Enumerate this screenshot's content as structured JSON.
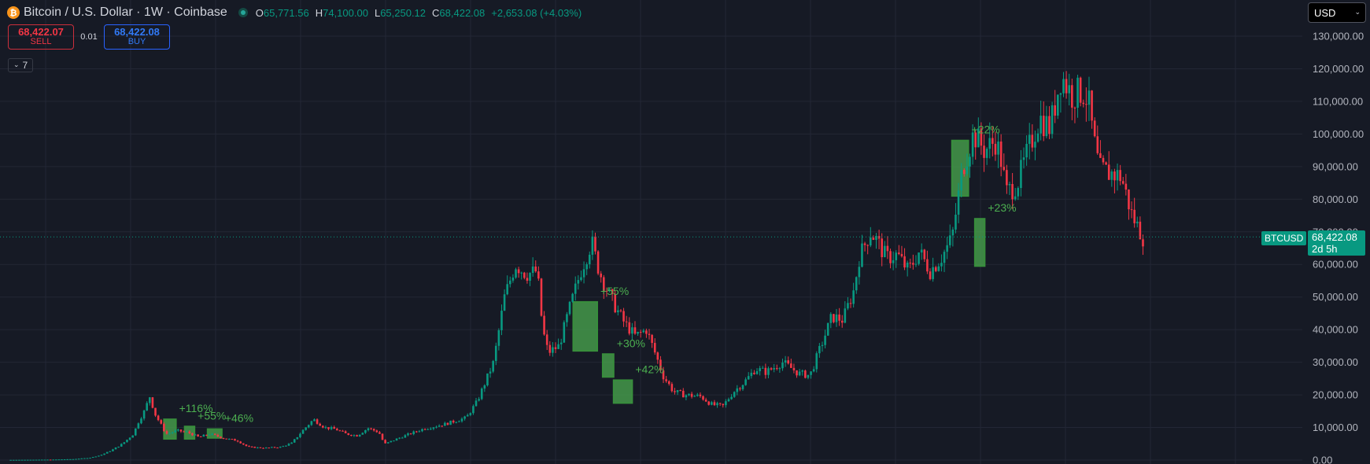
{
  "header": {
    "symbol_title": "Bitcoin / U.S. Dollar · 1W · Coinbase",
    "coin_icon": "bitcoin-icon",
    "ohlc": [
      {
        "key": "O",
        "value": "65,771.56"
      },
      {
        "key": "H",
        "value": "74,100.00"
      },
      {
        "key": "L",
        "value": "65,250.12"
      },
      {
        "key": "C",
        "value": "68,422.08"
      }
    ],
    "change": "+2,653.08 (+4.03%)"
  },
  "trade": {
    "sell_price": "68,422.07",
    "sell_label": "SELL",
    "spread": "0.01",
    "buy_price": "68,422.08",
    "buy_label": "BUY"
  },
  "indicators": {
    "count": "7",
    "icon": "chevron-down-icon"
  },
  "currency": {
    "selected": "USD",
    "icon": "chevron-down-icon"
  },
  "price_tag": {
    "symbol": "BTCUSD",
    "price": "68,422.08",
    "countdown": "2d 5h"
  },
  "colors": {
    "background": "#161a25",
    "grid": "#232735",
    "up": "#089981",
    "down": "#f23645",
    "annotation_fill": "#4caf50",
    "annotation_text": "#4caf50",
    "axis_text": "#b2b5be"
  },
  "chart_data": {
    "type": "candlestick",
    "timeframe": "1W",
    "y_axis": {
      "position": "right",
      "min": 0,
      "max": 130000,
      "tick_values": [
        0,
        10000,
        20000,
        30000,
        40000,
        50000,
        60000,
        70000,
        80000,
        90000,
        100000,
        110000,
        120000,
        130000
      ],
      "tick_labels": [
        "0.00",
        "10,000.00",
        "20,000.00",
        "30,000.00",
        "40,000.00",
        "50,000.00",
        "60,000.00",
        "70,000.00",
        "80,000.00",
        "90,000.00",
        "100,000.00",
        "110,000.00",
        "120,000.00",
        "130,000.00"
      ]
    },
    "grid": true,
    "last_price": 68422.08,
    "price_path": [
      [
        0,
        50
      ],
      [
        0.02,
        100
      ],
      [
        0.04,
        150
      ],
      [
        0.06,
        300
      ],
      [
        0.075,
        700
      ],
      [
        0.085,
        1500
      ],
      [
        0.095,
        3000
      ],
      [
        0.105,
        5000
      ],
      [
        0.115,
        8000
      ],
      [
        0.12,
        12000
      ],
      [
        0.125,
        15000
      ],
      [
        0.13,
        19500
      ],
      [
        0.135,
        14000
      ],
      [
        0.14,
        11000
      ],
      [
        0.145,
        8000
      ],
      [
        0.155,
        9000
      ],
      [
        0.165,
        8500
      ],
      [
        0.175,
        7000
      ],
      [
        0.185,
        8000
      ],
      [
        0.2,
        6500
      ],
      [
        0.21,
        6000
      ],
      [
        0.22,
        4000
      ],
      [
        0.235,
        3700
      ],
      [
        0.25,
        4000
      ],
      [
        0.26,
        5200
      ],
      [
        0.27,
        9000
      ],
      [
        0.28,
        12500
      ],
      [
        0.29,
        10000
      ],
      [
        0.3,
        9500
      ],
      [
        0.31,
        8000
      ],
      [
        0.32,
        7500
      ],
      [
        0.33,
        9800
      ],
      [
        0.34,
        8500
      ],
      [
        0.345,
        4900
      ],
      [
        0.36,
        7000
      ],
      [
        0.38,
        9500
      ],
      [
        0.4,
        11000
      ],
      [
        0.42,
        13000
      ],
      [
        0.43,
        18000
      ],
      [
        0.445,
        30000
      ],
      [
        0.455,
        50000
      ],
      [
        0.465,
        60000
      ],
      [
        0.475,
        57000
      ],
      [
        0.485,
        58000
      ],
      [
        0.49,
        40000
      ],
      [
        0.495,
        33000
      ],
      [
        0.505,
        35000
      ],
      [
        0.515,
        47000
      ],
      [
        0.525,
        58000
      ],
      [
        0.535,
        67000
      ],
      [
        0.54,
        60000
      ],
      [
        0.545,
        55000
      ],
      [
        0.555,
        48000
      ],
      [
        0.565,
        42000
      ],
      [
        0.575,
        38000
      ],
      [
        0.585,
        40000
      ],
      [
        0.595,
        31000
      ],
      [
        0.6,
        26000
      ],
      [
        0.61,
        21000
      ],
      [
        0.62,
        20000
      ],
      [
        0.635,
        19500
      ],
      [
        0.645,
        17000
      ],
      [
        0.655,
        16500
      ],
      [
        0.665,
        21000
      ],
      [
        0.675,
        24000
      ],
      [
        0.685,
        28000
      ],
      [
        0.695,
        27000
      ],
      [
        0.71,
        30000
      ],
      [
        0.725,
        26500
      ],
      [
        0.735,
        26000
      ],
      [
        0.745,
        35000
      ],
      [
        0.755,
        44000
      ],
      [
        0.765,
        43000
      ],
      [
        0.775,
        52000
      ],
      [
        0.78,
        62000
      ],
      [
        0.79,
        70000
      ],
      [
        0.795,
        68000
      ],
      [
        0.805,
        62000
      ],
      [
        0.815,
        63000
      ],
      [
        0.825,
        58000
      ],
      [
        0.835,
        64000
      ],
      [
        0.845,
        58000
      ],
      [
        0.855,
        62000
      ],
      [
        0.865,
        68000
      ],
      [
        0.875,
        90000
      ],
      [
        0.885,
        100000
      ],
      [
        0.895,
        95000
      ],
      [
        0.905,
        98000
      ],
      [
        0.91,
        92000
      ],
      [
        0.915,
        82000
      ],
      [
        0.925,
        85000
      ],
      [
        0.935,
        95000
      ],
      [
        0.945,
        105000
      ],
      [
        0.955,
        102000
      ],
      [
        0.965,
        118000
      ],
      [
        0.975,
        112000
      ],
      [
        0.985,
        113000
      ],
      [
        0.99,
        110000
      ],
      [
        0.995,
        98000
      ],
      [
        1.0,
        89000
      ],
      [
        1.01,
        88000
      ],
      [
        1.02,
        87000
      ],
      [
        1.03,
        75000
      ],
      [
        1.04,
        68422
      ]
    ],
    "annotations": [
      {
        "label": "+116%",
        "x0": 0.143,
        "x1": 0.154,
        "low": 6500,
        "high": 12500
      },
      {
        "label": "+55%",
        "x0": 0.162,
        "x1": 0.171,
        "low": 6500,
        "high": 10300
      },
      {
        "label": "+46%",
        "x0": 0.183,
        "x1": 0.196,
        "low": 6800,
        "high": 9500
      },
      {
        "label": "+55%",
        "x0": 0.518,
        "x1": 0.54,
        "low": 33500,
        "high": 48500
      },
      {
        "label": "+30%",
        "x0": 0.545,
        "x1": 0.555,
        "low": 25500,
        "high": 32500
      },
      {
        "label": "+42%",
        "x0": 0.555,
        "x1": 0.572,
        "low": 17500,
        "high": 24500
      },
      {
        "label": "+22%",
        "x0": 0.865,
        "x1": 0.88,
        "low": 81000,
        "high": 98000
      },
      {
        "label": "+23%",
        "x0": 0.886,
        "x1": 0.895,
        "low": 59500,
        "high": 74000
      }
    ]
  }
}
